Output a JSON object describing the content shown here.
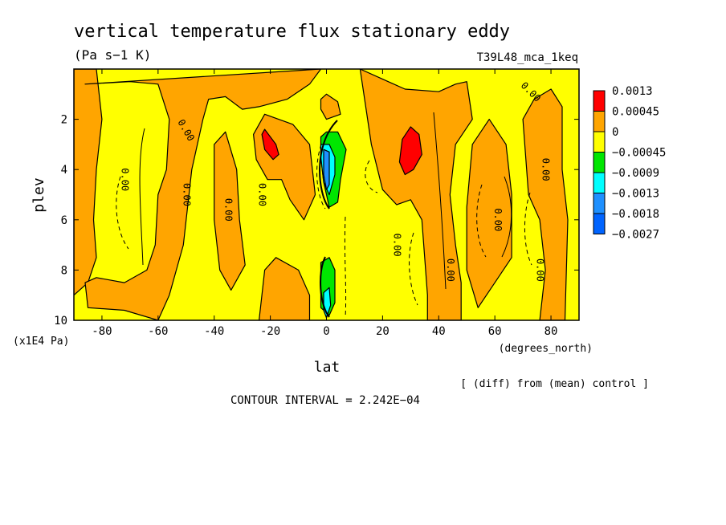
{
  "chart_data": {
    "type": "heatmap",
    "title": "vertical temperature flux stationary eddy",
    "units": "(Pa s−1 K)",
    "experiment": "T39L48_mca_1keq",
    "xlabel": "lat",
    "x_units": "(degrees_north)",
    "ylabel": "plev",
    "y_units": "(x1E4 Pa)",
    "xlim": [
      -90,
      90
    ],
    "ylim": [
      10,
      0
    ],
    "x_ticks": [
      -80,
      -60,
      -40,
      -20,
      0,
      20,
      40,
      60,
      80
    ],
    "y_ticks": [
      2,
      4,
      6,
      8,
      10
    ],
    "y_axis_inverted": true,
    "grid": false,
    "legend_position": "right",
    "colorbar": [
      {
        "label": "0.0013",
        "color": "#ff0000"
      },
      {
        "label": "0.00045",
        "color": "#ffa500"
      },
      {
        "label": "0",
        "color": "#ffff00"
      },
      {
        "label": "−0.00045",
        "color": "#00e600"
      },
      {
        "label": "−0.0009",
        "color": "#00ffff"
      },
      {
        "label": "−0.0013",
        "color": "#1e90ff"
      },
      {
        "label": "−0.0018",
        "color": "#0064ff"
      },
      {
        "label": "−0.0027",
        "color": ""
      }
    ],
    "background_color": "#ffff00",
    "regions": [
      {
        "level": "positive",
        "color": "#ffa500",
        "points": [
          [
            -90,
            0
          ],
          [
            -82,
            0
          ],
          [
            -80,
            2
          ],
          [
            -82,
            4
          ],
          [
            -83,
            6
          ],
          [
            -82,
            7.5
          ],
          [
            -85,
            8.5
          ],
          [
            -90,
            9
          ]
        ]
      },
      {
        "level": "positive",
        "color": "#ffa500",
        "points": [
          [
            -86,
            0.6
          ],
          [
            -70,
            0.5
          ],
          [
            -60,
            0.6
          ],
          [
            -56,
            2
          ],
          [
            -57,
            4
          ],
          [
            -60,
            5
          ],
          [
            -61,
            7
          ],
          [
            -64,
            8
          ],
          [
            -72,
            8.5
          ],
          [
            -82,
            8.3
          ],
          [
            -86,
            8.5
          ],
          [
            -85,
            9.5
          ],
          [
            -72,
            9.6
          ],
          [
            -60,
            10
          ],
          [
            -56,
            9
          ],
          [
            -51,
            7
          ],
          [
            -48,
            4
          ],
          [
            -44,
            2
          ],
          [
            -42,
            1.2
          ],
          [
            -36,
            1.1
          ],
          [
            -30,
            1.6
          ],
          [
            -24,
            1.5
          ],
          [
            -14,
            1.2
          ],
          [
            -6,
            0.6
          ],
          [
            -2,
            0
          ]
        ]
      },
      {
        "level": "positive",
        "color": "#ffa500",
        "points": [
          [
            -26,
            2.6
          ],
          [
            -22,
            1.8
          ],
          [
            -12,
            2.2
          ],
          [
            -6,
            3
          ],
          [
            -4,
            5
          ],
          [
            -8,
            6
          ],
          [
            -13,
            5.2
          ],
          [
            -16,
            4.4
          ],
          [
            -21,
            4.4
          ],
          [
            -25,
            3.6
          ]
        ]
      },
      {
        "level": "positive",
        "color": "#ffa500",
        "points": [
          [
            -40,
            3
          ],
          [
            -36,
            2.5
          ],
          [
            -32,
            4
          ],
          [
            -31,
            6
          ],
          [
            -29,
            7.8
          ],
          [
            -34,
            8.8
          ],
          [
            -38,
            8
          ],
          [
            -40,
            6
          ]
        ]
      },
      {
        "level": "positive",
        "color": "#ffa500",
        "points": [
          [
            -22,
            8
          ],
          [
            -18,
            7.5
          ],
          [
            -10,
            8
          ],
          [
            -6,
            9
          ],
          [
            -6,
            10
          ],
          [
            -24,
            10
          ]
        ]
      },
      {
        "level": "positive",
        "color": "#ffa500",
        "points": [
          [
            12,
            0
          ],
          [
            22,
            0.5
          ],
          [
            28,
            0.8
          ],
          [
            40,
            0.9
          ],
          [
            46,
            0.6
          ],
          [
            50,
            0.5
          ],
          [
            52,
            2
          ],
          [
            46,
            3
          ],
          [
            44,
            5
          ],
          [
            46,
            7
          ],
          [
            48,
            8.5
          ],
          [
            48,
            10
          ],
          [
            36,
            10
          ],
          [
            36,
            9
          ],
          [
            34,
            6
          ],
          [
            30,
            5.2
          ],
          [
            25,
            5.4
          ],
          [
            20,
            4.8
          ],
          [
            16,
            3
          ],
          [
            14,
            1.5
          ]
        ]
      },
      {
        "level": "positive",
        "color": "#ffa500",
        "points": [
          [
            52,
            3
          ],
          [
            58,
            2
          ],
          [
            64,
            3
          ],
          [
            66,
            5
          ],
          [
            66,
            7.5
          ],
          [
            60,
            8.5
          ],
          [
            54,
            9.5
          ],
          [
            50,
            8
          ],
          [
            50,
            5.5
          ]
        ]
      },
      {
        "level": "positive",
        "color": "#ffa500",
        "points": [
          [
            70,
            2
          ],
          [
            74,
            1.2
          ],
          [
            80,
            0.8
          ],
          [
            84,
            1.5
          ],
          [
            84,
            4
          ],
          [
            86,
            6
          ],
          [
            85,
            10
          ],
          [
            76,
            10
          ],
          [
            78,
            8
          ],
          [
            76,
            6
          ],
          [
            72,
            5
          ],
          [
            71,
            3.5
          ]
        ]
      },
      {
        "level": "positive",
        "color": "#ffa500",
        "points": [
          [
            -2,
            1.2
          ],
          [
            0,
            1
          ],
          [
            4,
            1.3
          ],
          [
            5,
            1.8
          ],
          [
            0,
            2
          ],
          [
            -2,
            1.6
          ]
        ]
      },
      {
        "level": "high",
        "color": "#ff0000",
        "points": [
          [
            -23,
            2.6
          ],
          [
            -22,
            2.4
          ],
          [
            -18,
            3
          ],
          [
            -17,
            3.4
          ],
          [
            -19,
            3.6
          ],
          [
            -22,
            3.2
          ]
        ]
      },
      {
        "level": "high",
        "color": "#ff0000",
        "points": [
          [
            27,
            2.8
          ],
          [
            30,
            2.3
          ],
          [
            33,
            2.6
          ],
          [
            34,
            3.4
          ],
          [
            31,
            4
          ],
          [
            28,
            4.2
          ],
          [
            26,
            3.7
          ]
        ]
      },
      {
        "level": "negative",
        "color": "#00e600",
        "points": [
          [
            -2,
            2.7
          ],
          [
            0,
            2.5
          ],
          [
            4,
            2.5
          ],
          [
            7,
            3.2
          ],
          [
            5,
            4.4
          ],
          [
            4,
            5.3
          ],
          [
            1,
            5.5
          ],
          [
            -1,
            4.5
          ],
          [
            -2,
            3.5
          ]
        ]
      },
      {
        "level": "negative",
        "color": "#00ffff",
        "points": [
          [
            -2,
            3
          ],
          [
            1,
            3
          ],
          [
            3,
            3.5
          ],
          [
            3,
            4.2
          ],
          [
            1,
            5
          ],
          [
            -1,
            4.5
          ],
          [
            -2,
            3.5
          ]
        ]
      },
      {
        "level": "negative",
        "color": "#1e90ff",
        "points": [
          [
            -1,
            3.2
          ],
          [
            1,
            3.3
          ],
          [
            1,
            4.6
          ],
          [
            0,
            4.8
          ],
          [
            -1,
            4.2
          ]
        ]
      },
      {
        "level": "negative",
        "color": "#00e600",
        "points": [
          [
            -2,
            7.7
          ],
          [
            1,
            7.5
          ],
          [
            3,
            8
          ],
          [
            3,
            9.3
          ],
          [
            1,
            9.8
          ],
          [
            -2,
            9.5
          ]
        ]
      },
      {
        "level": "negative",
        "color": "#00ffff",
        "points": [
          [
            -1,
            8.9
          ],
          [
            1,
            8.7
          ],
          [
            1.5,
            9.4
          ],
          [
            0,
            9.9
          ],
          [
            -1,
            9.6
          ]
        ]
      }
    ],
    "contour_labels": [
      {
        "text": "0.00",
        "lat": -73,
        "plev": 4.4,
        "angle": 90
      },
      {
        "text": "0.00",
        "lat": -51,
        "plev": 5.0,
        "angle": 90
      },
      {
        "text": "0.00",
        "lat": -36,
        "plev": 5.6,
        "angle": 90
      },
      {
        "text": "0.00",
        "lat": -24,
        "plev": 5.0,
        "angle": 90
      },
      {
        "text": "0.00",
        "lat": 24,
        "plev": 7.0,
        "angle": 90
      },
      {
        "text": "0.00",
        "lat": 43,
        "plev": 8.0,
        "angle": 90
      },
      {
        "text": "0.00",
        "lat": 60,
        "plev": 6.0,
        "angle": 90
      },
      {
        "text": "0.00",
        "lat": 75,
        "plev": 8.0,
        "angle": 90
      },
      {
        "text": "0.00",
        "lat": 77,
        "plev": 4.0,
        "angle": 90
      },
      {
        "text": "0.00",
        "lat": -51,
        "plev": 2.5,
        "angle": 60
      },
      {
        "text": "0.00",
        "lat": 72,
        "plev": 1.0,
        "angle": 45
      }
    ],
    "annotations": [
      "[ (diff) from (mean) control ]",
      "CONTOUR INTERVAL = 2.242E−04"
    ]
  }
}
